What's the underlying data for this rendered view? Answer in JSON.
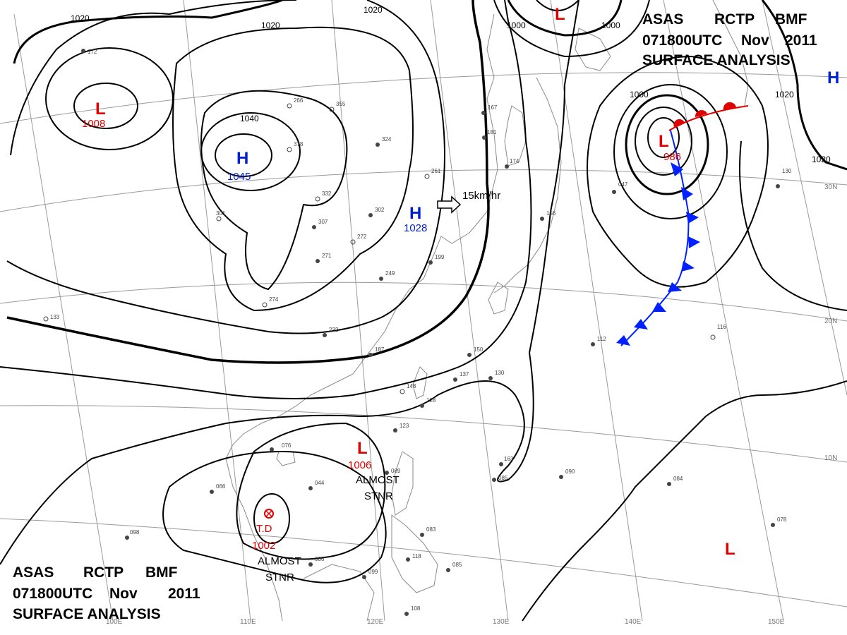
{
  "header_top": {
    "line1": [
      "ASAS",
      "RCTP",
      "BMF"
    ],
    "line2": [
      "071800UTC",
      "Nov",
      "2011"
    ],
    "line3": "SURFACE  ANALYSIS"
  },
  "header_bottom": {
    "line1": [
      "ASAS",
      "RCTP",
      "BMF"
    ],
    "line2": [
      "071800UTC",
      "Nov",
      "2011"
    ],
    "line3": "SURFACE  ANALYSIS"
  },
  "colors": {
    "low": "#e00000",
    "high": "#0020d0",
    "cold_front": "#0020ff",
    "warm_front": "#e00000",
    "isobar": "#000000",
    "grid": "#9a9a9a",
    "coast": "#8a8a8a"
  },
  "systems": [
    {
      "id": "low-northwest",
      "type": "L",
      "value": "1008"
    },
    {
      "id": "high-mongolia",
      "type": "H",
      "value": "1045"
    },
    {
      "id": "high-east-china",
      "type": "H",
      "value": "1028"
    },
    {
      "id": "low-north",
      "type": "L",
      "value": ""
    },
    {
      "id": "low-pacific-deep",
      "type": "L",
      "value": "986"
    },
    {
      "id": "high-east-edge",
      "type": "H",
      "value": ""
    },
    {
      "id": "low-scs",
      "type": "L",
      "value": "1006"
    },
    {
      "id": "td-gulf",
      "type": "T.D",
      "value": "1002"
    },
    {
      "id": "low-southeast",
      "type": "L",
      "value": ""
    }
  ],
  "annotations": {
    "motion_speed": "15km/hr",
    "stnr_scs": [
      "ALMOST",
      "STNR"
    ],
    "stnr_td": [
      "ALMOST",
      "STNR"
    ]
  },
  "isobar_labels": {
    "a": "1020",
    "b": "1020",
    "c": "1020",
    "d": "1040",
    "e": "1000",
    "f": "1000",
    "g": "1000",
    "h": "1020",
    "i": "1020"
  },
  "grid_labels": {
    "lat30": "30N",
    "lat20": "20N",
    "lat10": "10N",
    "lon100": "100E",
    "lon110": "110E",
    "lon120": "120E",
    "lon130": "130E",
    "lon140": "140E",
    "lon150": "150E"
  },
  "stations": [
    {
      "id": "s1",
      "t": "266"
    },
    {
      "id": "s2",
      "t": "355"
    },
    {
      "id": "s3",
      "t": "378"
    },
    {
      "id": "s4",
      "t": "332"
    },
    {
      "id": "s5",
      "t": "324"
    },
    {
      "id": "s6",
      "t": "261"
    },
    {
      "id": "s7",
      "t": "302"
    },
    {
      "id": "s8",
      "t": "272"
    },
    {
      "id": "s9",
      "t": "271"
    },
    {
      "id": "s10",
      "t": "249"
    },
    {
      "id": "s11",
      "t": "199"
    },
    {
      "id": "s12",
      "t": "274"
    },
    {
      "id": "s13",
      "t": "232"
    },
    {
      "id": "s14",
      "t": "187"
    },
    {
      "id": "s15",
      "t": "150"
    },
    {
      "id": "s16",
      "t": "137"
    },
    {
      "id": "s17",
      "t": "130"
    },
    {
      "id": "s18",
      "t": "148"
    },
    {
      "id": "s19",
      "t": "128"
    },
    {
      "id": "s20",
      "t": "123"
    },
    {
      "id": "s21",
      "t": "163"
    },
    {
      "id": "s22",
      "t": "090"
    },
    {
      "id": "s23",
      "t": "084"
    },
    {
      "id": "s24",
      "t": "078"
    },
    {
      "id": "s25",
      "t": "066"
    },
    {
      "id": "s26",
      "t": "044"
    },
    {
      "id": "s27",
      "t": "098"
    },
    {
      "id": "s28",
      "t": "086"
    },
    {
      "id": "s29",
      "t": "083"
    },
    {
      "id": "s30",
      "t": "099"
    },
    {
      "id": "s31",
      "t": "108"
    },
    {
      "id": "s32",
      "t": "085"
    },
    {
      "id": "s33",
      "t": "112"
    },
    {
      "id": "s34",
      "t": "116"
    },
    {
      "id": "s35",
      "t": "130"
    },
    {
      "id": "s36",
      "t": "047"
    },
    {
      "id": "s37",
      "t": "156"
    },
    {
      "id": "s38",
      "t": "167"
    },
    {
      "id": "s39",
      "t": "181"
    },
    {
      "id": "s40",
      "t": "174"
    },
    {
      "id": "s41",
      "t": "301"
    },
    {
      "id": "s42",
      "t": "307"
    },
    {
      "id": "s43",
      "t": "133"
    },
    {
      "id": "s44",
      "t": "172"
    },
    {
      "id": "s45",
      "t": "076"
    },
    {
      "id": "s46",
      "t": "085"
    },
    {
      "id": "s47",
      "t": "089"
    },
    {
      "id": "s48",
      "t": "118"
    }
  ]
}
